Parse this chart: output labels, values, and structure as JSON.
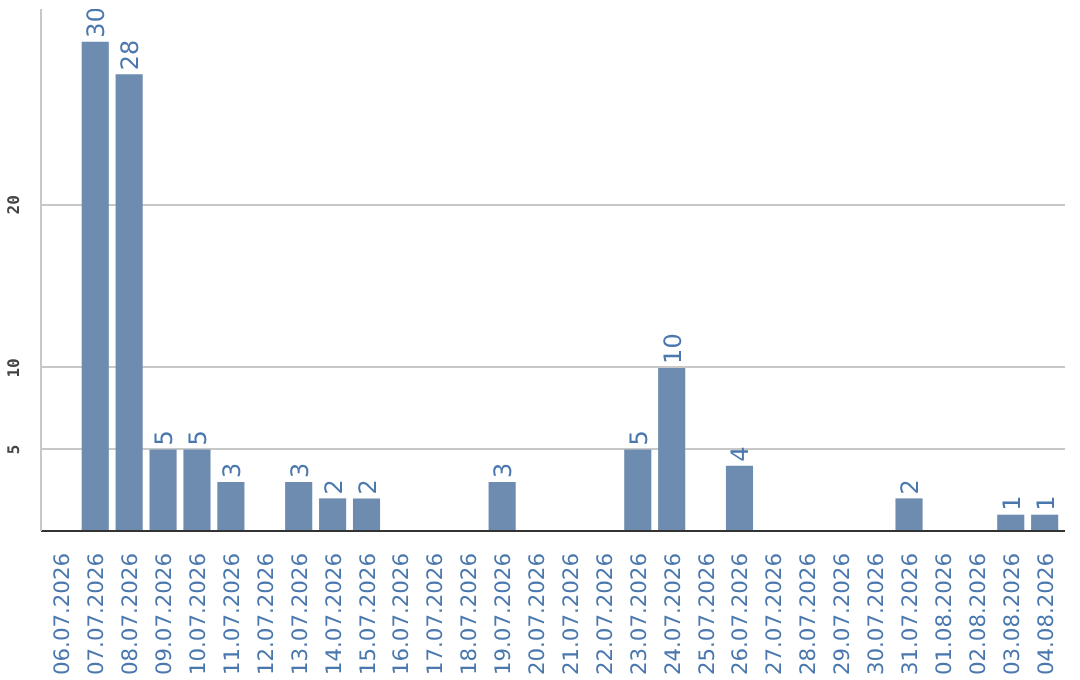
{
  "chart_data": {
    "type": "bar",
    "categories": [
      "06.07.2026",
      "07.07.2026",
      "08.07.2026",
      "09.07.2026",
      "10.07.2026",
      "11.07.2026",
      "12.07.2026",
      "13.07.2026",
      "14.07.2026",
      "15.07.2026",
      "16.07.2026",
      "17.07.2026",
      "18.07.2026",
      "19.07.2026",
      "20.07.2026",
      "21.07.2026",
      "22.07.2026",
      "23.07.2026",
      "24.07.2026",
      "25.07.2026",
      "26.07.2026",
      "27.07.2026",
      "28.07.2026",
      "29.07.2026",
      "30.07.2026",
      "31.07.2026",
      "01.08.2026",
      "02.08.2026",
      "03.08.2026",
      "04.08.2026"
    ],
    "values": [
      0,
      30,
      28,
      5,
      5,
      3,
      0,
      3,
      2,
      2,
      0,
      0,
      0,
      3,
      0,
      0,
      0,
      5,
      10,
      0,
      4,
      0,
      0,
      0,
      0,
      2,
      0,
      0,
      1,
      1
    ],
    "value_labels": [
      null,
      "30",
      "28",
      "5",
      "5",
      "3",
      null,
      "3",
      "2",
      "2",
      null,
      null,
      null,
      "3",
      null,
      null,
      null,
      "5",
      "10",
      null,
      "4",
      null,
      null,
      null,
      null,
      "2",
      null,
      null,
      "1",
      "1"
    ],
    "color": "#6e8caf",
    "ylim": [
      0,
      32
    ],
    "yticks": [
      5,
      10,
      20
    ],
    "grid": "y"
  }
}
